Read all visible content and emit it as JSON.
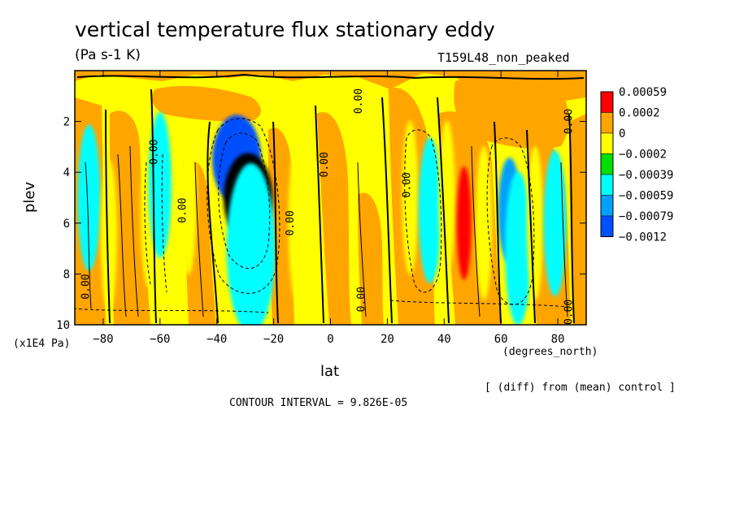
{
  "chart_data": {
    "type": "heatmap",
    "title": "vertical temperature flux stationary eddy",
    "subtitle": "(Pa s-1 K)",
    "run_label": "T159L48_non_peaked",
    "xlabel": "lat",
    "x_unit": "(degrees_north)",
    "ylabel": "plev",
    "y_unit": "(x1E4 Pa)",
    "diff_note": "[ (diff) from (mean) control ]",
    "contour_interval": "CONTOUR INTERVAL = 9.826E-05",
    "xlim": [
      -90,
      90
    ],
    "ylim": [
      10,
      0
    ],
    "x_ticks": [
      "-80",
      "-60",
      "-40",
      "-20",
      "0",
      "20",
      "40",
      "60",
      "80"
    ],
    "y_ticks": [
      "2",
      "4",
      "6",
      "8",
      "10"
    ],
    "legend": {
      "labels": [
        "0.00059",
        "0.0002",
        "0",
        "-0.0002",
        "-0.00039",
        "-0.00059",
        "-0.00079",
        "-0.0012"
      ],
      "colors": [
        "#ff0000",
        "#ffa500",
        "#ffff00",
        "#00e000",
        "#00ffff",
        "#00a0ff",
        "#0050ff"
      ]
    },
    "features": [
      {
        "lat": -85,
        "plev": 5.0,
        "level": 4
      },
      {
        "lat": -73,
        "plev": 6.0,
        "level": 1
      },
      {
        "lat": -78,
        "plev": 6.5,
        "level": 2
      },
      {
        "lat": -64,
        "plev": 5.5,
        "level": 2
      },
      {
        "lat": -60,
        "plev": 4.5,
        "level": 4
      },
      {
        "lat": -50,
        "plev": 5.0,
        "level": 2
      },
      {
        "lat": -33,
        "plev": 3.5,
        "level": 6
      },
      {
        "lat": -29,
        "plev": 5.0,
        "level": 7
      },
      {
        "lat": -28,
        "plev": 7.0,
        "level": 4
      },
      {
        "lat": -12,
        "plev": 6.0,
        "level": 2
      },
      {
        "lat": 28,
        "plev": 5.0,
        "level": 2
      },
      {
        "lat": 35,
        "plev": 5.5,
        "level": 4
      },
      {
        "lat": 41,
        "plev": 5.0,
        "level": 2
      },
      {
        "lat": 47,
        "plev": 6.0,
        "level": 0
      },
      {
        "lat": 54,
        "plev": 6.0,
        "level": 2
      },
      {
        "lat": 63,
        "plev": 5.5,
        "level": 5
      },
      {
        "lat": 66,
        "plev": 7.0,
        "level": 4
      },
      {
        "lat": 72,
        "plev": 6.0,
        "level": 2
      },
      {
        "lat": 79,
        "plev": 6.0,
        "level": 4
      }
    ],
    "contour_labels": [
      {
        "text": "0.00",
        "lat": -61,
        "plev": 3.2
      },
      {
        "text": "0.00",
        "lat": 11,
        "plev": 1.2
      },
      {
        "text": "0.00",
        "lat": -1,
        "plev": 3.7
      },
      {
        "text": "0.00",
        "lat": -51,
        "plev": 5.5
      },
      {
        "text": "0.00",
        "lat": -13,
        "plev": 6.0
      },
      {
        "text": "0.00",
        "lat": -85,
        "plev": 8.5
      },
      {
        "text": "0.00",
        "lat": 12,
        "plev": 9.0
      },
      {
        "text": "0.00",
        "lat": 28,
        "plev": 4.5
      },
      {
        "text": "0.00",
        "lat": 85,
        "plev": 2.0
      },
      {
        "text": "0.00",
        "lat": 85,
        "plev": 9.5
      }
    ],
    "grid": false
  }
}
